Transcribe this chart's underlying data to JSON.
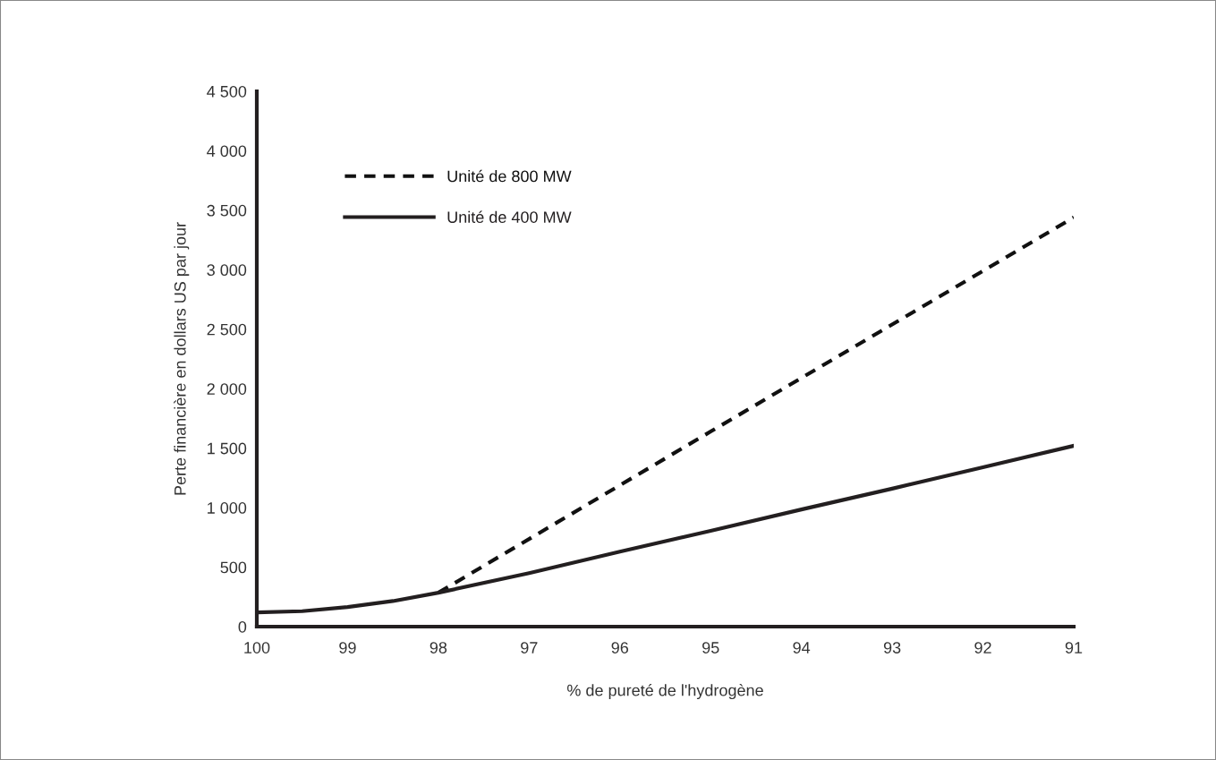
{
  "chart_data": {
    "type": "line",
    "xlabel": "% de pureté de l'hydrogène",
    "ylabel": "Perte financière en dollars US par jour",
    "series": [
      {
        "name": "Unité de 800 MW",
        "color": "#111111",
        "line_style": "dashed",
        "x": [
          98,
          95,
          91
        ],
        "values": [
          285,
          1640,
          3440
        ]
      },
      {
        "name": "Unité de 400 MW",
        "color": "#231f20",
        "line_style": "solid",
        "x": [
          100,
          99.5,
          99,
          98.5,
          98,
          97,
          96,
          95,
          94,
          93,
          92,
          91
        ],
        "values": [
          120,
          130,
          165,
          215,
          285,
          450,
          630,
          805,
          985,
          1160,
          1340,
          1520
        ]
      }
    ],
    "xlim": [
      100,
      91
    ],
    "xticks": [
      100,
      99,
      98,
      97,
      96,
      95,
      94,
      93,
      92,
      91
    ],
    "ylim": [
      0,
      4500
    ],
    "yticks": [
      0,
      500,
      {
        "value": 1000,
        "label": "1 000"
      },
      {
        "value": 1500,
        "label": "1 500"
      },
      {
        "value": 2000,
        "label": "2 000"
      },
      {
        "value": 2500,
        "label": "2 500"
      },
      {
        "value": 3000,
        "label": "3 000"
      },
      {
        "value": 3500,
        "label": "3 500"
      },
      {
        "value": 4000,
        "label": "4 000"
      },
      {
        "value": 4500,
        "label": "4 500"
      }
    ],
    "grid": false,
    "legend": "top left",
    "marker": "none"
  }
}
